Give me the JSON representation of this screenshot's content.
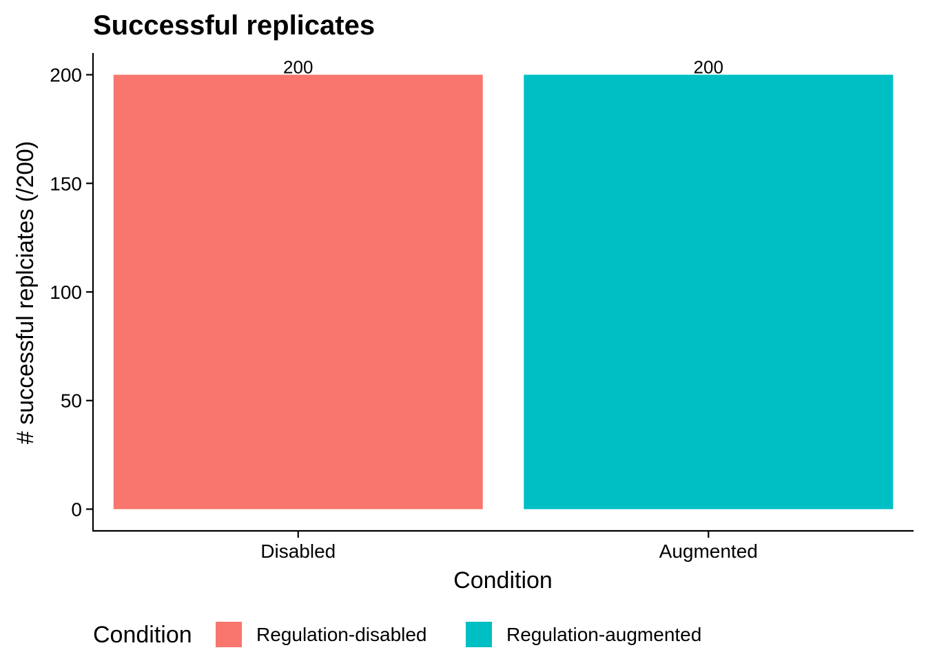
{
  "chart_data": {
    "type": "bar",
    "title": "Successful replicates",
    "xlabel": "Condition",
    "ylabel": "# successful replciates (/200)",
    "categories": [
      "Disabled",
      "Augmented"
    ],
    "values": [
      200,
      200
    ],
    "data_labels": [
      "200",
      "200"
    ],
    "colors": [
      "#F8766D",
      "#00BFC4"
    ],
    "ylim": [
      -10,
      210
    ],
    "yticks": [
      0,
      50,
      100,
      150,
      200
    ],
    "grid": false,
    "legend": {
      "title": "Condition",
      "placement": "bottom",
      "entries": [
        {
          "label": "Regulation-disabled",
          "color": "#F8766D"
        },
        {
          "label": "Regulation-augmented",
          "color": "#00BFC4"
        }
      ]
    }
  }
}
